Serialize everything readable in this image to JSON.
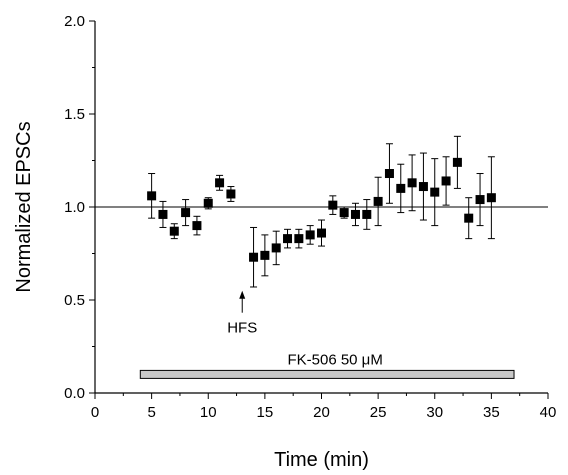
{
  "chart_data": {
    "type": "scatter",
    "title": "",
    "xlabel": "Time (min)",
    "ylabel": "Normalized EPSCs",
    "xlim": [
      0,
      40
    ],
    "ylim": [
      0.0,
      2.0
    ],
    "x_ticks": [
      "0",
      "5",
      "10",
      "15",
      "20",
      "25",
      "30",
      "35",
      "40"
    ],
    "y_ticks": [
      "0.0",
      "0.5",
      "1.0",
      "1.5",
      "2.0"
    ],
    "reference_line": 1.0,
    "grid": false,
    "legend": "none",
    "series": [
      {
        "marker": "square",
        "color": "#000000",
        "x": [
          5,
          6,
          7,
          8,
          9,
          10,
          11,
          12,
          14,
          15,
          16,
          17,
          18,
          19,
          20,
          21,
          22,
          23,
          24,
          25,
          26,
          27,
          28,
          29,
          30,
          31,
          32,
          33,
          34,
          35
        ],
        "y": [
          1.06,
          0.96,
          0.87,
          0.97,
          0.9,
          1.02,
          1.13,
          1.07,
          0.73,
          0.74,
          0.78,
          0.83,
          0.83,
          0.85,
          0.86,
          1.01,
          0.97,
          0.96,
          0.96,
          1.03,
          1.18,
          1.1,
          1.13,
          1.11,
          1.08,
          1.14,
          1.24,
          0.94,
          1.04,
          1.05
        ],
        "error": [
          0.12,
          0.07,
          0.04,
          0.07,
          0.05,
          0.03,
          0.04,
          0.04,
          0.16,
          0.11,
          0.09,
          0.05,
          0.05,
          0.05,
          0.07,
          0.05,
          0.03,
          0.06,
          0.08,
          0.13,
          0.16,
          0.13,
          0.15,
          0.18,
          0.18,
          0.13,
          0.14,
          0.11,
          0.14,
          0.22
        ]
      }
    ],
    "annotations": [
      {
        "text": "HFS",
        "x": 13,
        "y": 0.55,
        "kind": "arrow-up"
      }
    ],
    "drug_bar": {
      "label": "FK-506 50 μM",
      "x_start": 4,
      "x_end": 37,
      "y": 0.1,
      "color": "#c8c8c8"
    }
  }
}
